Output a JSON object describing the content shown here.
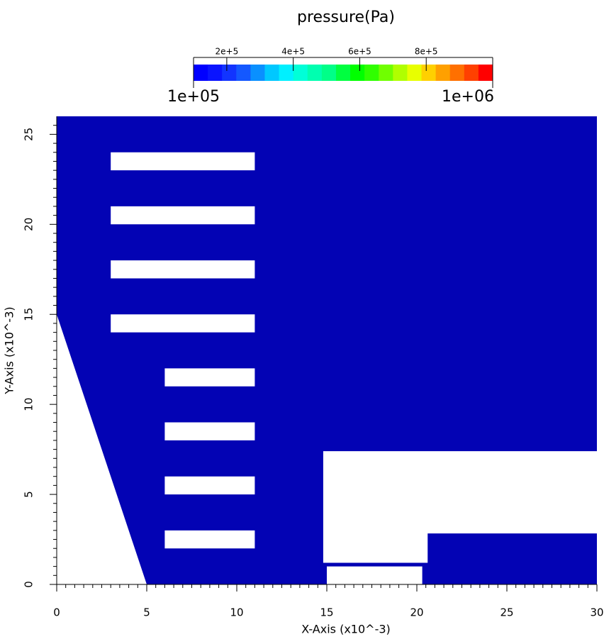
{
  "chart_data": {
    "type": "field",
    "title": "pressure(Pa)",
    "x_label": "X-Axis (x10^-3)",
    "y_label": "Y-Axis (x10^-3)",
    "xlim": [
      0,
      30
    ],
    "ylim": [
      0,
      26
    ],
    "xticks": [
      0,
      5,
      10,
      15,
      20,
      25,
      30
    ],
    "yticks": [
      0,
      5,
      10,
      15,
      20,
      25
    ],
    "minor_divisions": 10,
    "field_color": "#0303b4",
    "domain": {
      "x": [
        0,
        0,
        30,
        30,
        5
      ],
      "y": [
        15,
        26,
        26,
        0,
        0
      ]
    },
    "holes": [
      {
        "x": [
          3,
          11,
          11,
          3
        ],
        "y": [
          23,
          23,
          24,
          24
        ]
      },
      {
        "x": [
          3,
          11,
          11,
          3
        ],
        "y": [
          20,
          20,
          21,
          21
        ]
      },
      {
        "x": [
          3,
          11,
          11,
          3
        ],
        "y": [
          17,
          17,
          18,
          18
        ]
      },
      {
        "x": [
          3,
          11,
          11,
          3
        ],
        "y": [
          14,
          14,
          15,
          15
        ]
      },
      {
        "x": [
          6,
          11,
          11,
          6
        ],
        "y": [
          11,
          11,
          12,
          12
        ]
      },
      {
        "x": [
          6,
          11,
          11,
          6
        ],
        "y": [
          8,
          8,
          9,
          9
        ]
      },
      {
        "x": [
          6,
          11,
          11,
          6
        ],
        "y": [
          5,
          5,
          6,
          6
        ]
      },
      {
        "x": [
          6,
          11,
          11,
          6
        ],
        "y": [
          2,
          2,
          3,
          3
        ]
      },
      {
        "x": [
          14.8,
          30,
          30,
          20.6,
          20.6,
          14.8
        ],
        "y": [
          7.4,
          7.4,
          2.83,
          2.83,
          1.2,
          1.2
        ]
      },
      {
        "x": [
          15,
          20.3,
          20.3,
          15
        ],
        "y": [
          0,
          0,
          1,
          1
        ]
      }
    ],
    "clim": [
      100000,
      1000000
    ],
    "clim_labels": [
      "1e+05",
      "1e+06"
    ],
    "cticks": [
      {
        "value": 200000,
        "label": "2e+5"
      },
      {
        "value": 400000,
        "label": "4e+5"
      },
      {
        "value": 600000,
        "label": "6e+5"
      },
      {
        "value": 800000,
        "label": "8e+5"
      }
    ],
    "colormap": [
      "#0000ff",
      "#0a14ff",
      "#1234ff",
      "#1458ff",
      "#0a90ff",
      "#00c8ff",
      "#00f0ff",
      "#00ffd8",
      "#00ffb0",
      "#00ff88",
      "#00ff40",
      "#00ff00",
      "#30ff00",
      "#70ff00",
      "#b0ff00",
      "#e8ff00",
      "#ffd000",
      "#ffa000",
      "#ff7000",
      "#ff4000",
      "#ff0000"
    ]
  }
}
